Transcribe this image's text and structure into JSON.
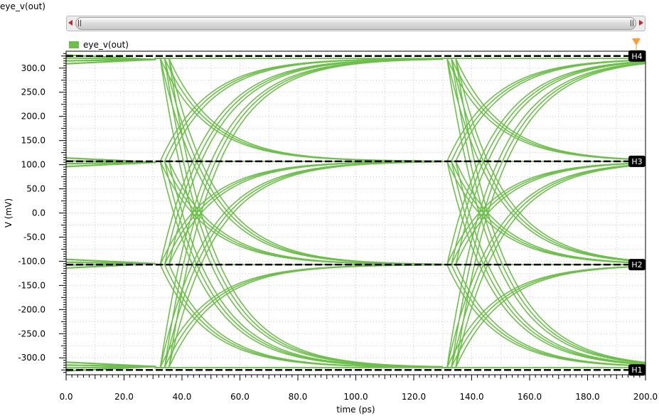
{
  "window_title": "eye_v(out)",
  "chart_data": {
    "type": "line",
    "title": "",
    "xlabel": "time (ps)",
    "ylabel": "V (mV)",
    "xlim": [
      0,
      200
    ],
    "ylim": [
      -335,
      335
    ],
    "x_ticks": [
      "0.0",
      "20.0",
      "40.0",
      "60.0",
      "80.0",
      "100.0",
      "120.0",
      "140.0",
      "160.0",
      "180.0",
      "200.0"
    ],
    "y_ticks": [
      "300.0",
      "250.0",
      "200.0",
      "150.0",
      "100.0",
      "50.0",
      "0.0",
      "-50.0",
      "-100.0",
      "-150.0",
      "-200.0",
      "-250.0",
      "-300.0"
    ],
    "grid": true,
    "legend": {
      "position": "top-left",
      "entries": [
        "eye_v(out)"
      ]
    },
    "series_color": "#6cc04a",
    "series": [
      {
        "name": "eye_v(out)"
      }
    ],
    "levels": [
      -320,
      -107,
      107,
      320
    ],
    "transition_times": [
      31,
      130
    ],
    "eye_crossings": [
      {
        "time": 48,
        "voltage": 0
      },
      {
        "time": 147,
        "voltage": 0
      }
    ],
    "markers": [
      {
        "label": "H4",
        "value": 325
      },
      {
        "label": "H3",
        "value": 107
      },
      {
        "label": "H2",
        "value": -107
      },
      {
        "label": "H1",
        "value": -325
      }
    ]
  }
}
